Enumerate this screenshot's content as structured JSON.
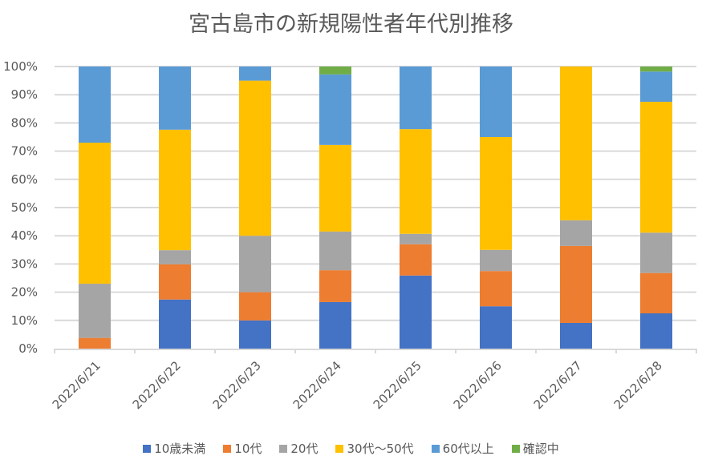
{
  "chart_data": {
    "type": "bar",
    "stacked": "percent",
    "title": "宮古島市の新規陽性者年代別推移",
    "xlabel": "",
    "ylabel": "",
    "ylim": [
      0,
      100
    ],
    "yticks": [
      "0%",
      "10%",
      "20%",
      "30%",
      "40%",
      "50%",
      "60%",
      "70%",
      "80%",
      "90%",
      "100%"
    ],
    "grid": true,
    "legend_position": "bottom",
    "categories": [
      "2022/6/21",
      "2022/6/22",
      "2022/6/23",
      "2022/6/24",
      "2022/6/25",
      "2022/6/26",
      "2022/6/27",
      "2022/6/28"
    ],
    "series": [
      {
        "name": "10歳未満",
        "color": "#4472C4",
        "values": [
          0,
          17.4,
          10.0,
          16.5,
          25.9,
          15.0,
          9.1,
          12.5
        ]
      },
      {
        "name": "10代",
        "color": "#ED7D31",
        "values": [
          3.8,
          12.5,
          10.0,
          11.3,
          11.1,
          12.5,
          27.3,
          14.3
        ]
      },
      {
        "name": "20代",
        "color": "#A5A5A5",
        "values": [
          19.2,
          5.0,
          20.0,
          13.7,
          3.7,
          7.5,
          9.1,
          14.3
        ]
      },
      {
        "name": "30代～50代",
        "color": "#FFC000",
        "values": [
          50.0,
          42.7,
          55.0,
          30.7,
          37.1,
          40.0,
          54.5,
          46.4
        ]
      },
      {
        "name": "60代以上",
        "color": "#5B9BD5",
        "values": [
          27.0,
          22.4,
          5.0,
          25.0,
          22.2,
          25.0,
          0,
          10.7
        ]
      },
      {
        "name": "確認中",
        "color": "#70AD47",
        "values": [
          0,
          0,
          0,
          2.8,
          0,
          0,
          0,
          1.8
        ]
      }
    ]
  }
}
